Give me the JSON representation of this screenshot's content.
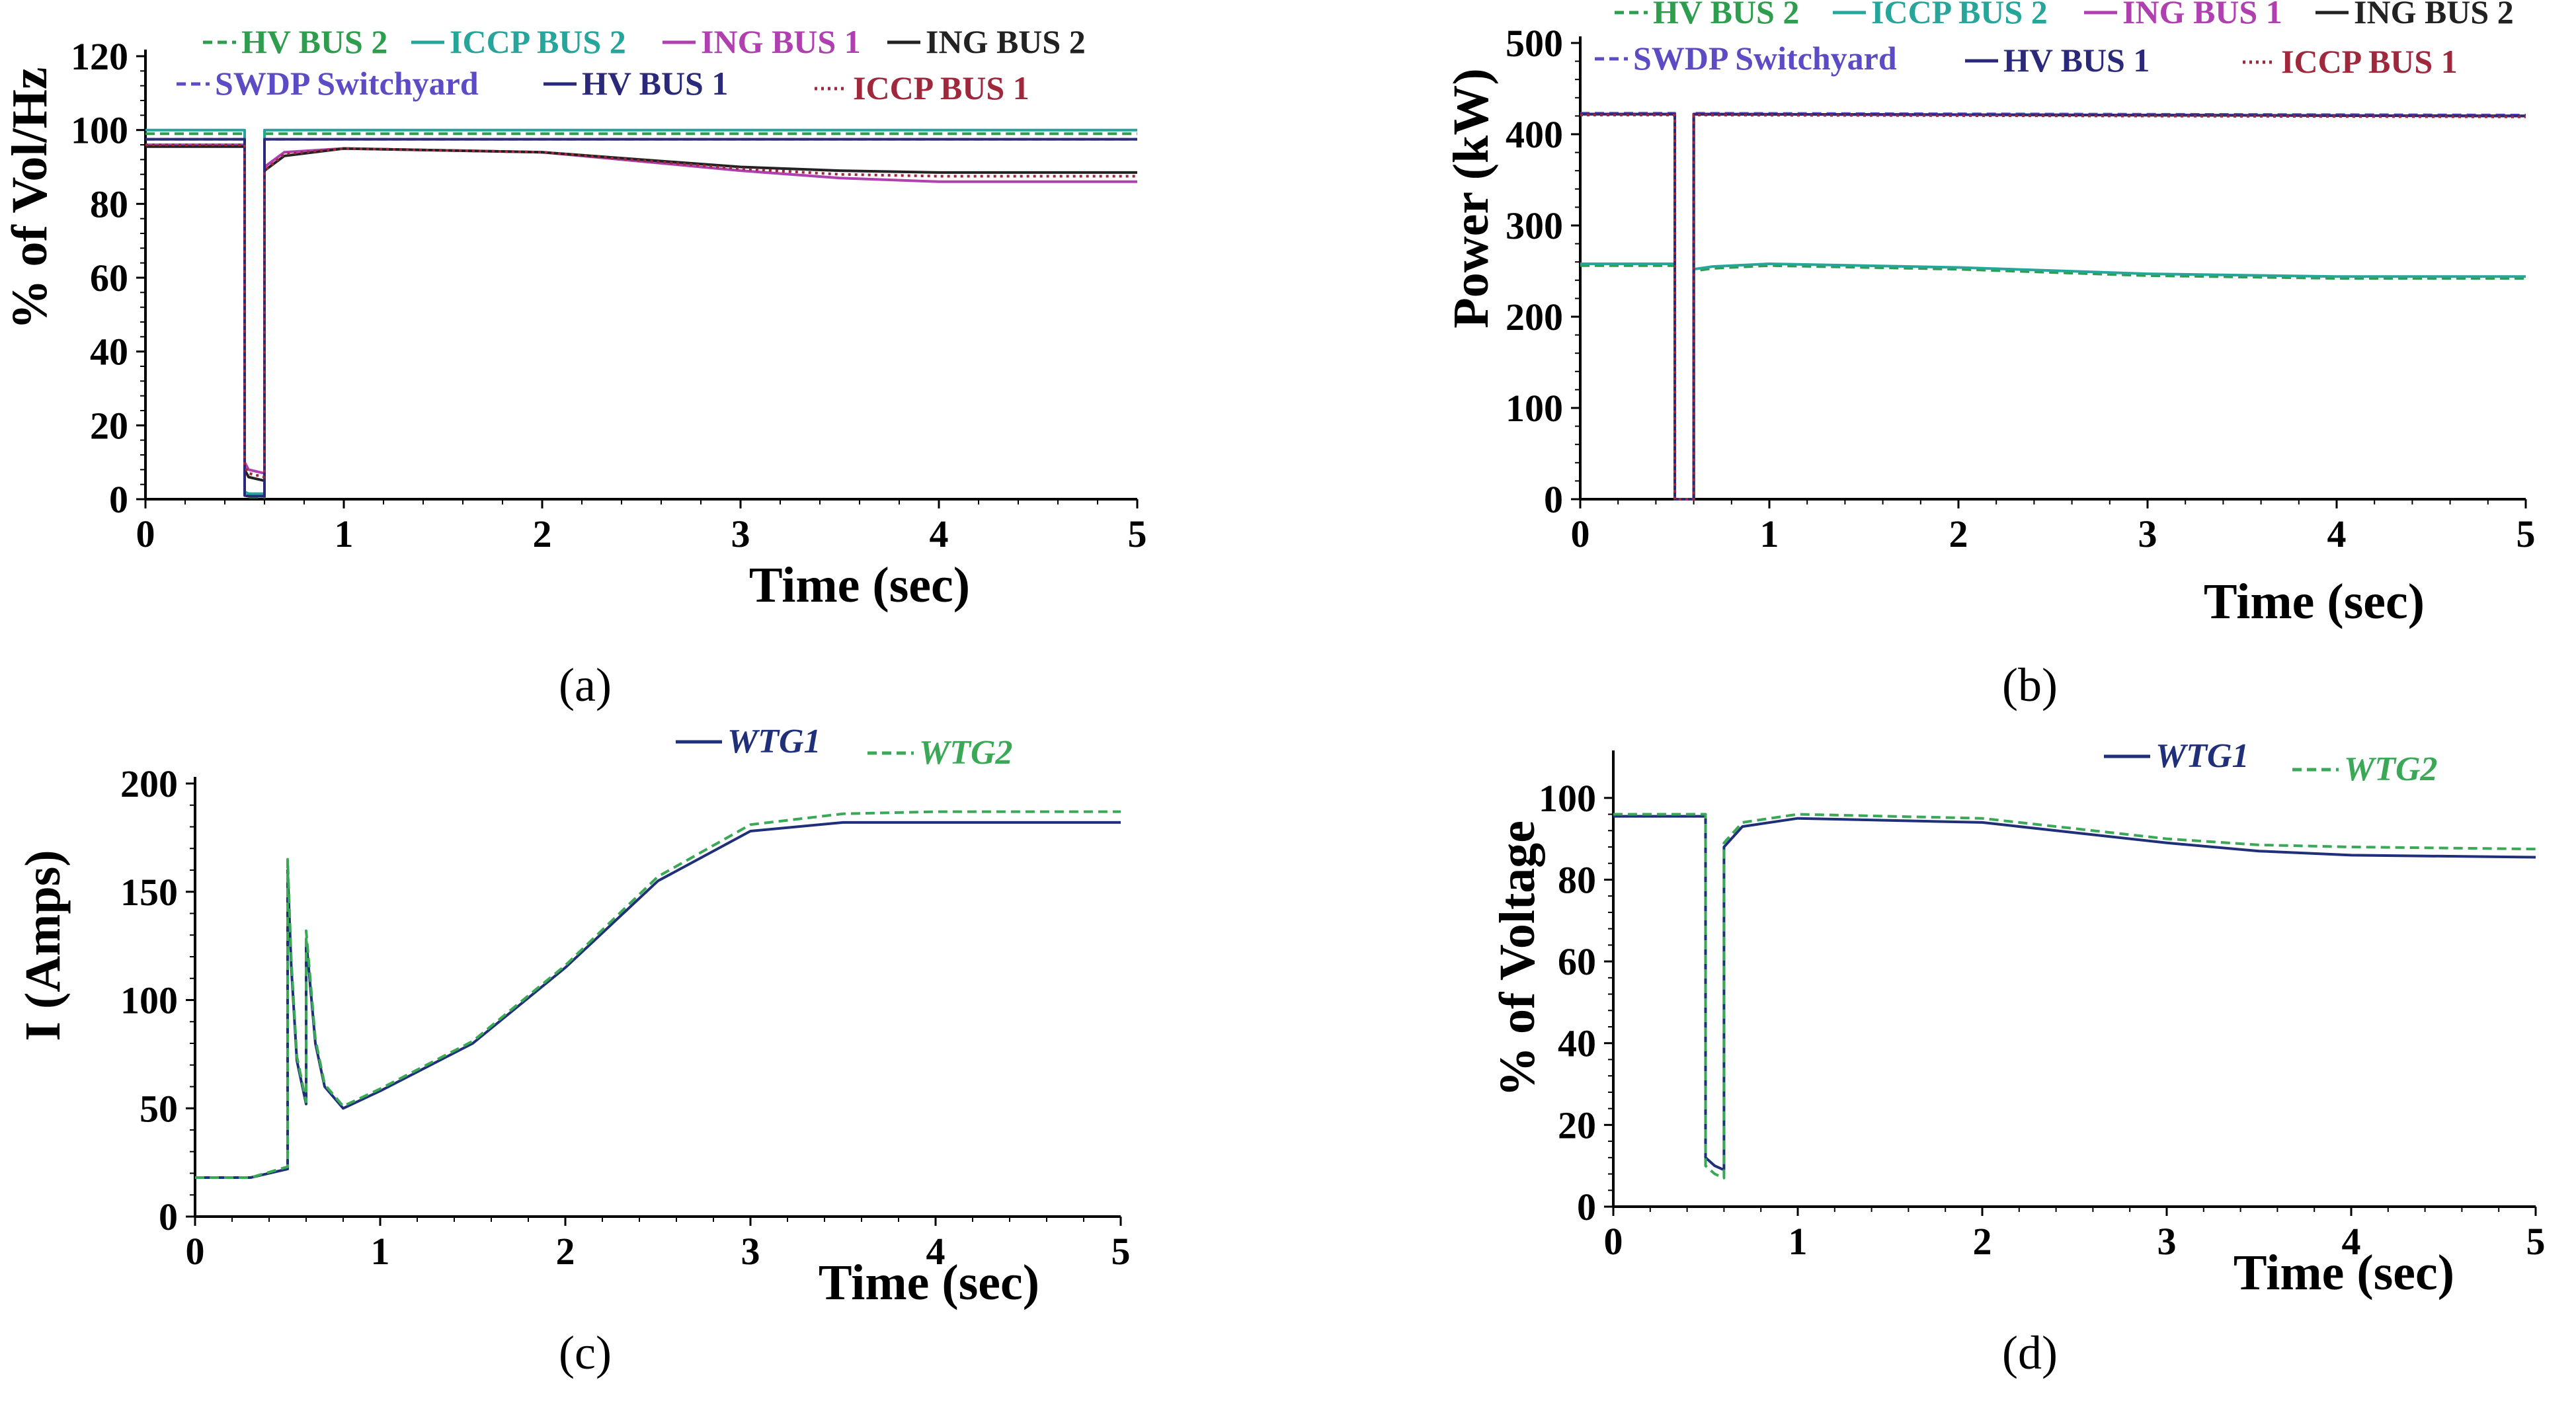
{
  "chart_data": [
    {
      "panel": "(a)",
      "type": "line",
      "xlabel": "Time (sec)",
      "ylabel": "% of Vol/Hz",
      "xlim": [
        0,
        5
      ],
      "ylim": [
        0,
        120
      ],
      "xticks": [
        "0",
        "1",
        "2",
        "3",
        "4",
        "5"
      ],
      "yticks": [
        "0",
        "20",
        "40",
        "60",
        "80",
        "100",
        "120"
      ],
      "legend_position": "top",
      "series": [
        {
          "name": "HV BUS 2",
          "color": "#2e9e4e",
          "dash": "dashed",
          "x": [
            0,
            0.5,
            0.5,
            0.52,
            0.6,
            0.6,
            0.63,
            5
          ],
          "y": [
            99,
            99,
            1,
            0.6,
            0.6,
            99,
            99,
            99
          ]
        },
        {
          "name": "ICCP BUS 2",
          "color": "#26a69a",
          "dash": "solid",
          "x": [
            0,
            0.5,
            0.5,
            0.52,
            0.6,
            0.6,
            0.63,
            5
          ],
          "y": [
            100,
            100,
            2,
            1.5,
            1.5,
            100,
            100,
            100
          ]
        },
        {
          "name": "ING BUS 1",
          "color": "#b040b0",
          "dash": "solid",
          "x": [
            0,
            0.5,
            0.5,
            0.52,
            0.6,
            0.6,
            0.7,
            1,
            2,
            3,
            3.5,
            4,
            5
          ],
          "y": [
            96,
            96,
            10,
            8,
            7,
            90,
            94,
            95,
            94,
            89,
            87,
            86,
            86
          ]
        },
        {
          "name": "ING BUS 2",
          "color": "#222222",
          "dash": "solid",
          "x": [
            0,
            0.5,
            0.5,
            0.52,
            0.6,
            0.6,
            0.7,
            1,
            2,
            3,
            3.5,
            4,
            5
          ],
          "y": [
            95.5,
            95.5,
            8,
            6,
            5,
            89,
            93,
            95,
            94,
            90,
            89,
            88.5,
            88.5
          ]
        },
        {
          "name": "SWDP Switchyard",
          "color": "#5b4bc4",
          "dash": "dashed",
          "x": [
            0,
            0.5,
            0.5,
            0.52,
            0.6,
            0.6,
            0.63,
            5
          ],
          "y": [
            97.5,
            97.5,
            1,
            0.8,
            0.8,
            97.5,
            97.5,
            97.5
          ]
        },
        {
          "name": "HV BUS 1",
          "color": "#2b2a7a",
          "dash": "solid",
          "x": [
            0,
            0.5,
            0.5,
            0.52,
            0.6,
            0.6,
            0.63,
            5
          ],
          "y": [
            97.5,
            97.5,
            1,
            0.8,
            0.8,
            97.5,
            97.5,
            97.5
          ]
        },
        {
          "name": "ICCP BUS 1",
          "color": "#a0283c",
          "dash": "dotted",
          "x": [
            0,
            0.5,
            0.5,
            0.52,
            0.6,
            0.6,
            0.7,
            1,
            2,
            3,
            3.5,
            4,
            5
          ],
          "y": [
            96,
            96,
            9,
            7,
            6,
            89,
            93.5,
            95,
            94,
            89.5,
            88,
            87.5,
            87.5
          ]
        }
      ]
    },
    {
      "panel": "(b)",
      "type": "line",
      "xlabel": "Time (sec)",
      "ylabel": "Power (kW)",
      "xlim": [
        0,
        5
      ],
      "ylim": [
        0,
        500
      ],
      "xticks": [
        "0",
        "1",
        "2",
        "3",
        "4",
        "5"
      ],
      "yticks": [
        "0",
        "100",
        "200",
        "300",
        "400",
        "500"
      ],
      "legend_position": "top",
      "series": [
        {
          "name": "HV BUS 2",
          "color": "#2e9e4e",
          "dash": "dashed",
          "x": [
            0,
            0.5,
            0.5,
            0.6,
            0.6,
            0.7,
            1,
            2,
            3,
            4,
            5
          ],
          "y": [
            256,
            256,
            0,
            0,
            250,
            253,
            256,
            252,
            245,
            242,
            242
          ]
        },
        {
          "name": "ICCP BUS 2",
          "color": "#26a69a",
          "dash": "solid",
          "x": [
            0,
            0.5,
            0.5,
            0.6,
            0.6,
            0.7,
            1,
            2,
            3,
            4,
            5
          ],
          "y": [
            258,
            258,
            0,
            0,
            252,
            255,
            258,
            254,
            247,
            244,
            244
          ]
        },
        {
          "name": "ING BUS 1",
          "color": "#b040b0",
          "dash": "solid",
          "x": [
            0,
            0.5,
            0.5,
            0.6,
            0.6,
            5
          ],
          "y": [
            422,
            422,
            0,
            0,
            422,
            420
          ]
        },
        {
          "name": "ING BUS 2",
          "color": "#222222",
          "dash": "solid",
          "x": [
            0,
            0.5,
            0.5,
            0.6,
            0.6,
            5
          ],
          "y": [
            422,
            422,
            0,
            0,
            422,
            420
          ]
        },
        {
          "name": "SWDP Switchyard",
          "color": "#5b4bc4",
          "dash": "dashed",
          "x": [
            0,
            0.5,
            0.5,
            0.6,
            0.6,
            5
          ],
          "y": [
            423,
            423,
            0,
            0,
            423,
            421
          ]
        },
        {
          "name": "HV BUS 1",
          "color": "#2b2a7a",
          "dash": "solid",
          "x": [
            0,
            0.5,
            0.5,
            0.6,
            0.6,
            5
          ],
          "y": [
            422,
            422,
            0,
            0,
            422,
            420
          ]
        },
        {
          "name": "ICCP BUS 1",
          "color": "#a0283c",
          "dash": "dotted",
          "x": [
            0,
            0.5,
            0.5,
            0.6,
            0.6,
            5
          ],
          "y": [
            421,
            421,
            0,
            0,
            421,
            419
          ]
        }
      ]
    },
    {
      "panel": "(c)",
      "type": "line",
      "xlabel": "Time (sec)",
      "ylabel": "I (Amps)",
      "xlim": [
        0,
        5
      ],
      "ylim": [
        0,
        200
      ],
      "xticks": [
        "0",
        "1",
        "2",
        "3",
        "4",
        "5"
      ],
      "yticks": [
        "0",
        "50",
        "100",
        "150",
        "200"
      ],
      "legend_position": "top-right",
      "series": [
        {
          "name": "WTG1",
          "color": "#1f2f7a",
          "dash": "solid",
          "x": [
            0,
            0.3,
            0.5,
            0.5,
            0.52,
            0.55,
            0.6,
            0.6,
            0.65,
            0.7,
            0.8,
            1,
            1.5,
            2,
            2.5,
            3,
            3.5,
            4,
            4.5,
            5
          ],
          "y": [
            18,
            18,
            22,
            160,
            115,
            72,
            52,
            128,
            80,
            60,
            50,
            58,
            80,
            115,
            155,
            178,
            182,
            182,
            182,
            182
          ]
        },
        {
          "name": "WTG2",
          "color": "#3aa856",
          "dash": "dashed",
          "x": [
            0,
            0.3,
            0.5,
            0.5,
            0.52,
            0.55,
            0.6,
            0.6,
            0.65,
            0.7,
            0.8,
            1,
            1.5,
            2,
            2.5,
            3,
            3.5,
            4,
            4.5,
            5
          ],
          "y": [
            18,
            18,
            23,
            165,
            118,
            74,
            53,
            132,
            82,
            61,
            51,
            59,
            81,
            116,
            157,
            181,
            186,
            187,
            187,
            187
          ]
        }
      ]
    },
    {
      "panel": "(d)",
      "type": "line",
      "xlabel": "Time (sec)",
      "ylabel": "% of Voltage",
      "xlim": [
        0,
        5
      ],
      "ylim": [
        0,
        110
      ],
      "xticks": [
        "0",
        "1",
        "2",
        "3",
        "4",
        "5"
      ],
      "yticks": [
        "0",
        "20",
        "40",
        "60",
        "80",
        "100"
      ],
      "legend_position": "top-right",
      "series": [
        {
          "name": "WTG1",
          "color": "#1f2f7a",
          "dash": "solid",
          "x": [
            0,
            0.5,
            0.5,
            0.55,
            0.6,
            0.6,
            0.7,
            1,
            2,
            3,
            3.5,
            4,
            5
          ],
          "y": [
            95.5,
            95.5,
            12,
            10,
            9,
            88,
            93,
            95,
            94,
            89,
            87,
            86,
            85.5
          ]
        },
        {
          "name": "WTG2",
          "color": "#3aa856",
          "dash": "dashed",
          "x": [
            0,
            0.5,
            0.5,
            0.55,
            0.6,
            0.6,
            0.7,
            1,
            2,
            3,
            3.5,
            4,
            5
          ],
          "y": [
            96,
            96,
            10,
            8,
            7,
            89,
            94,
            96,
            95,
            90,
            88.5,
            88,
            87.5
          ]
        }
      ]
    }
  ]
}
